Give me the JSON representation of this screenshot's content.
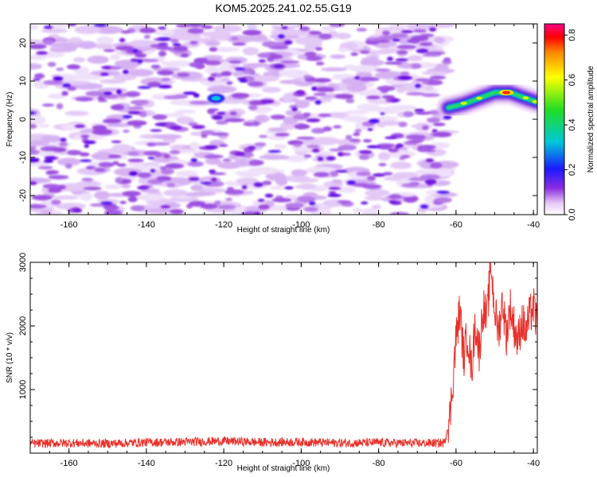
{
  "title": "KOM5.2025.241.02.55.G19",
  "chart_data": [
    {
      "type": "heatmap",
      "xlabel": "Height of straight line (km)",
      "ylabel": "Frequency (Hz)",
      "xlim": [
        -170,
        -39
      ],
      "ylim": [
        -25,
        25
      ],
      "xticks": [
        "-160",
        "-140",
        "-120",
        "-100",
        "-80",
        "-60",
        "-40"
      ],
      "yticks": [
        "20",
        "10",
        "0",
        "-10",
        "-20"
      ],
      "data_end_left": -62,
      "tone_track": {
        "x": [
          -62,
          -58,
          -54,
          -50,
          -46,
          -42,
          -39
        ],
        "y": [
          3,
          4,
          5.5,
          7,
          7,
          5.5,
          4.5
        ],
        "peak_amplitude": 0.8,
        "peak_x": -47
      },
      "bright_spot": {
        "x": -122,
        "y": 5.5,
        "amplitude": 0.35
      },
      "colorbar": {
        "label": "Normalized spectral amplitude",
        "ticks": [
          "0.0",
          "0.2",
          "0.4",
          "0.6",
          "0.8"
        ],
        "range": [
          0,
          0.85
        ]
      }
    },
    {
      "type": "line",
      "xlabel": "Height of straight line (km)",
      "ylabel": "SNR (10 * v/v)",
      "xlim": [
        -170,
        -39
      ],
      "ylim": [
        0,
        3000
      ],
      "xticks": [
        "-160",
        "-140",
        "-120",
        "-100",
        "-80",
        "-60",
        "-40"
      ],
      "yticks": [
        "1000",
        "2000",
        "3000"
      ],
      "series": [
        {
          "name": "SNR",
          "color": "#e8302a",
          "x": [
            -170,
            -160,
            -150,
            -140,
            -130,
            -120,
            -110,
            -100,
            -90,
            -80,
            -70,
            -63,
            -61.5,
            -60,
            -59,
            -58,
            -57,
            -56,
            -55,
            -54,
            -53,
            -52,
            -51,
            -50.5,
            -50,
            -49,
            -48,
            -47,
            -46,
            -45,
            -44,
            -43,
            -42,
            -41,
            -40,
            -39
          ],
          "y": [
            150,
            160,
            150,
            170,
            175,
            190,
            170,
            175,
            160,
            165,
            155,
            160,
            600,
            1800,
            2250,
            1500,
            1900,
            1300,
            2050,
            1600,
            2300,
            2100,
            3000,
            2600,
            2250,
            1900,
            2400,
            1850,
            2300,
            2000,
            1750,
            2100,
            1900,
            2150,
            2300,
            2000
          ]
        }
      ]
    }
  ]
}
